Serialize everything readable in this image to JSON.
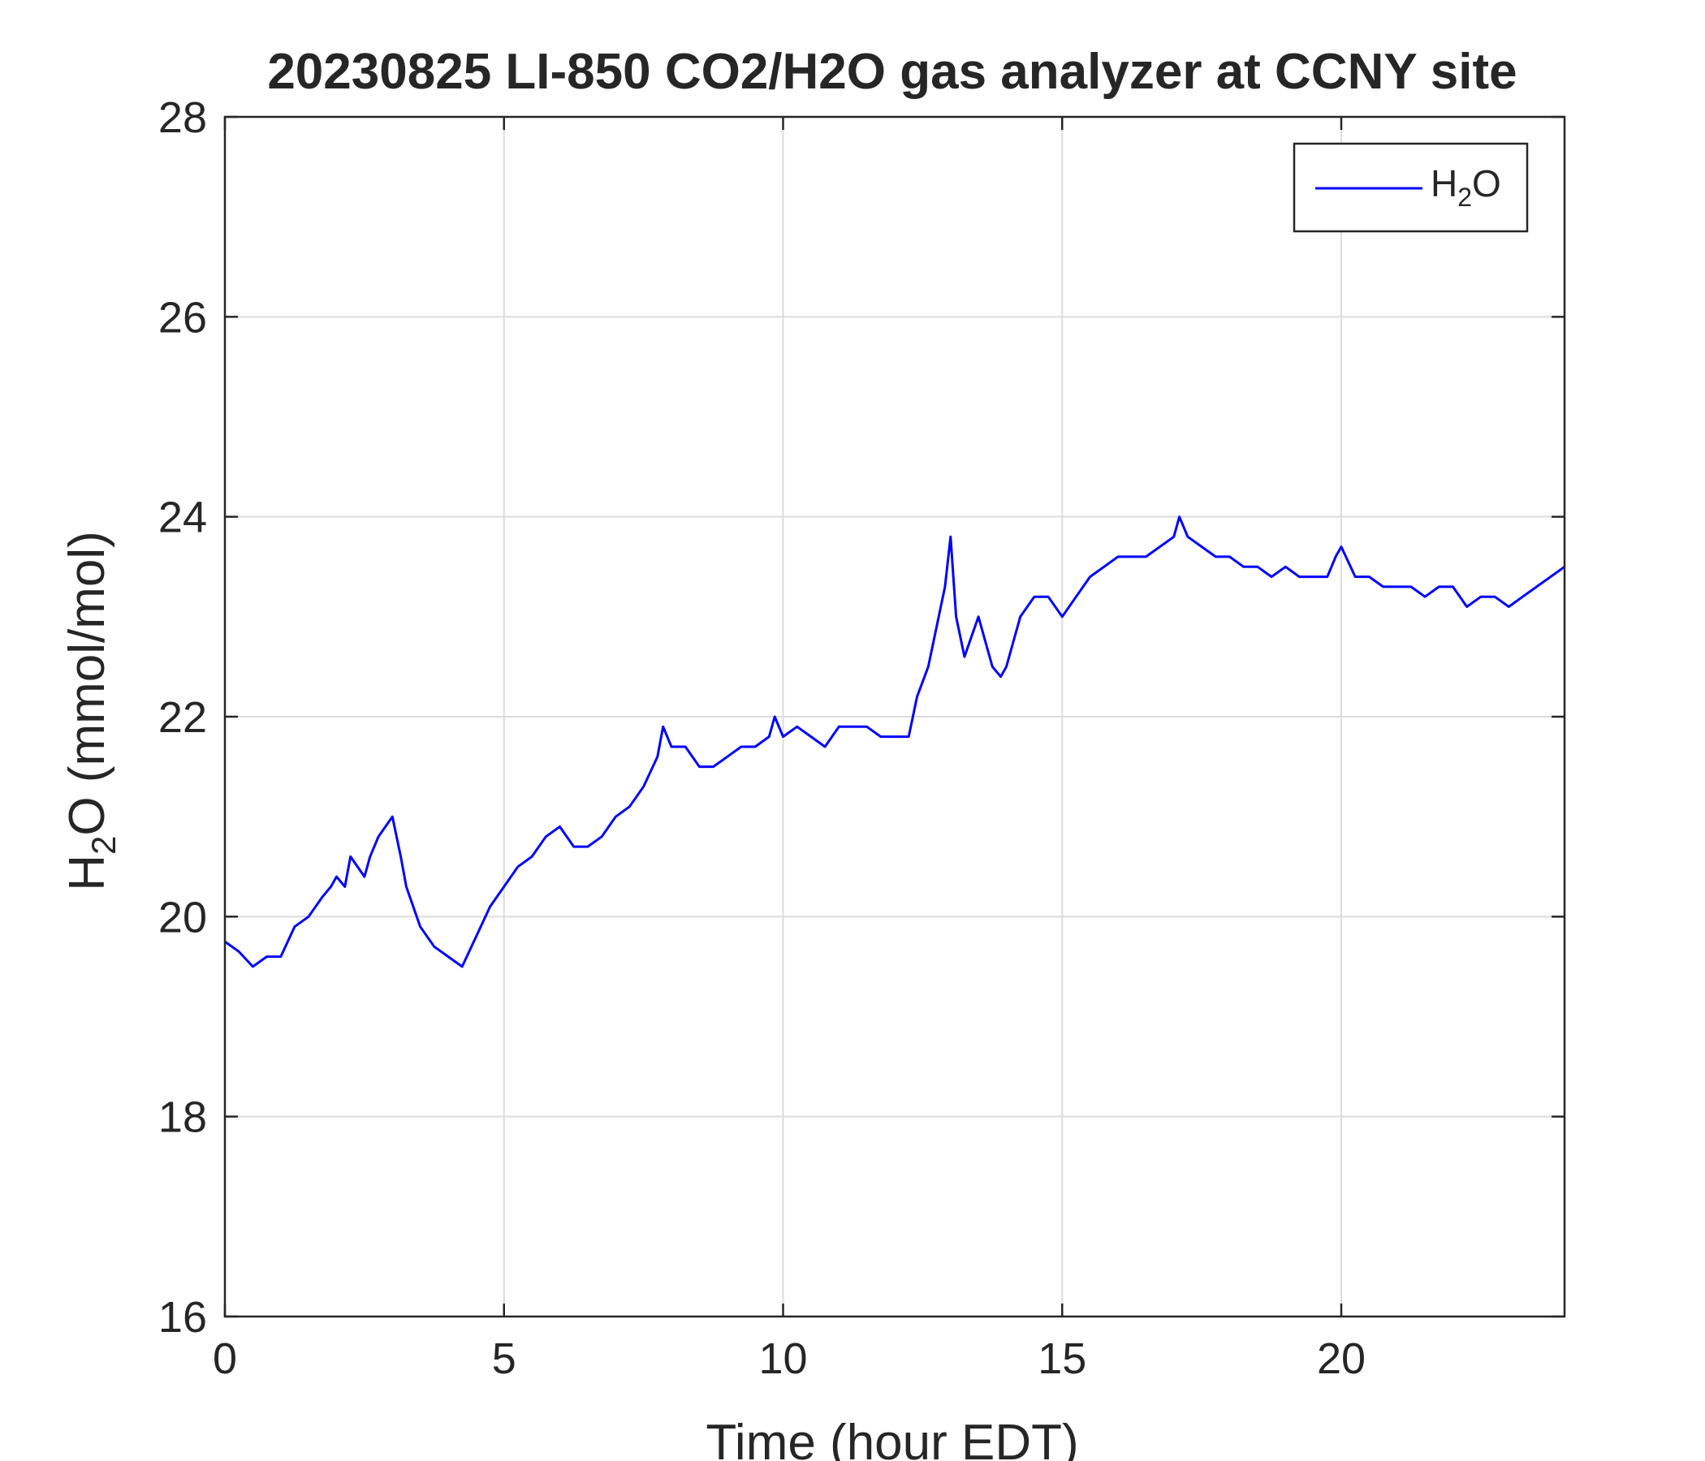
{
  "chart_data": {
    "type": "line",
    "title": "20230825 LI-850 CO2/H2O gas analyzer at CCNY site",
    "xlabel": "Time (hour EDT)",
    "ylabel": {
      "main": "H",
      "sub": "2",
      "rest": "O (mmol/mol)"
    },
    "xlim": [
      0,
      24
    ],
    "ylim": [
      16,
      28
    ],
    "x_ticks": [
      0,
      5,
      10,
      15,
      20
    ],
    "y_ticks": [
      16,
      18,
      20,
      22,
      24,
      26,
      28
    ],
    "grid": true,
    "legend_position": "top-right",
    "series": [
      {
        "name": {
          "main": "H",
          "sub": "2",
          "rest": "O"
        },
        "color": "#0000ff",
        "x": [
          0,
          0.25,
          0.5,
          0.75,
          1.0,
          1.25,
          1.5,
          1.75,
          1.9,
          2.0,
          2.15,
          2.25,
          2.5,
          2.6,
          2.75,
          3.0,
          3.15,
          3.25,
          3.5,
          3.75,
          4.0,
          4.25,
          4.5,
          4.75,
          5.0,
          5.25,
          5.5,
          5.75,
          6.0,
          6.25,
          6.5,
          6.75,
          7.0,
          7.25,
          7.5,
          7.75,
          7.85,
          8.0,
          8.25,
          8.5,
          8.75,
          9.0,
          9.25,
          9.5,
          9.75,
          9.85,
          10.0,
          10.25,
          10.5,
          10.75,
          11.0,
          11.25,
          11.5,
          11.75,
          12.0,
          12.25,
          12.4,
          12.6,
          12.75,
          12.9,
          13.0,
          13.1,
          13.25,
          13.5,
          13.75,
          13.9,
          14.0,
          14.25,
          14.5,
          14.75,
          15.0,
          15.25,
          15.5,
          15.75,
          16.0,
          16.25,
          16.5,
          16.75,
          17.0,
          17.1,
          17.25,
          17.5,
          17.75,
          18.0,
          18.25,
          18.5,
          18.75,
          19.0,
          19.25,
          19.5,
          19.75,
          19.9,
          20.0,
          20.25,
          20.5,
          20.75,
          21.0,
          21.25,
          21.5,
          21.75,
          22.0,
          22.25,
          22.5,
          22.75,
          23.0,
          23.25,
          23.5,
          23.75,
          24.0
        ],
        "y": [
          19.75,
          19.65,
          19.5,
          19.6,
          19.6,
          19.9,
          20.0,
          20.2,
          20.3,
          20.4,
          20.3,
          20.6,
          20.4,
          20.6,
          20.8,
          21.0,
          20.6,
          20.3,
          19.9,
          19.7,
          19.6,
          19.5,
          19.8,
          20.1,
          20.3,
          20.5,
          20.6,
          20.8,
          20.9,
          20.7,
          20.7,
          20.8,
          21.0,
          21.1,
          21.3,
          21.6,
          21.9,
          21.7,
          21.7,
          21.5,
          21.5,
          21.6,
          21.7,
          21.7,
          21.8,
          22.0,
          21.8,
          21.9,
          21.8,
          21.7,
          21.9,
          21.9,
          21.9,
          21.8,
          21.8,
          21.8,
          22.2,
          22.5,
          22.9,
          23.3,
          23.8,
          23.0,
          22.6,
          23.0,
          22.5,
          22.4,
          22.5,
          23.0,
          23.2,
          23.2,
          23.0,
          23.2,
          23.4,
          23.5,
          23.6,
          23.6,
          23.6,
          23.7,
          23.8,
          24.0,
          23.8,
          23.7,
          23.6,
          23.6,
          23.5,
          23.5,
          23.4,
          23.5,
          23.4,
          23.4,
          23.4,
          23.6,
          23.7,
          23.4,
          23.4,
          23.3,
          23.3,
          23.3,
          23.2,
          23.3,
          23.3,
          23.1,
          23.2,
          23.2,
          23.1,
          23.2,
          23.3,
          23.4,
          23.5
        ]
      }
    ]
  }
}
